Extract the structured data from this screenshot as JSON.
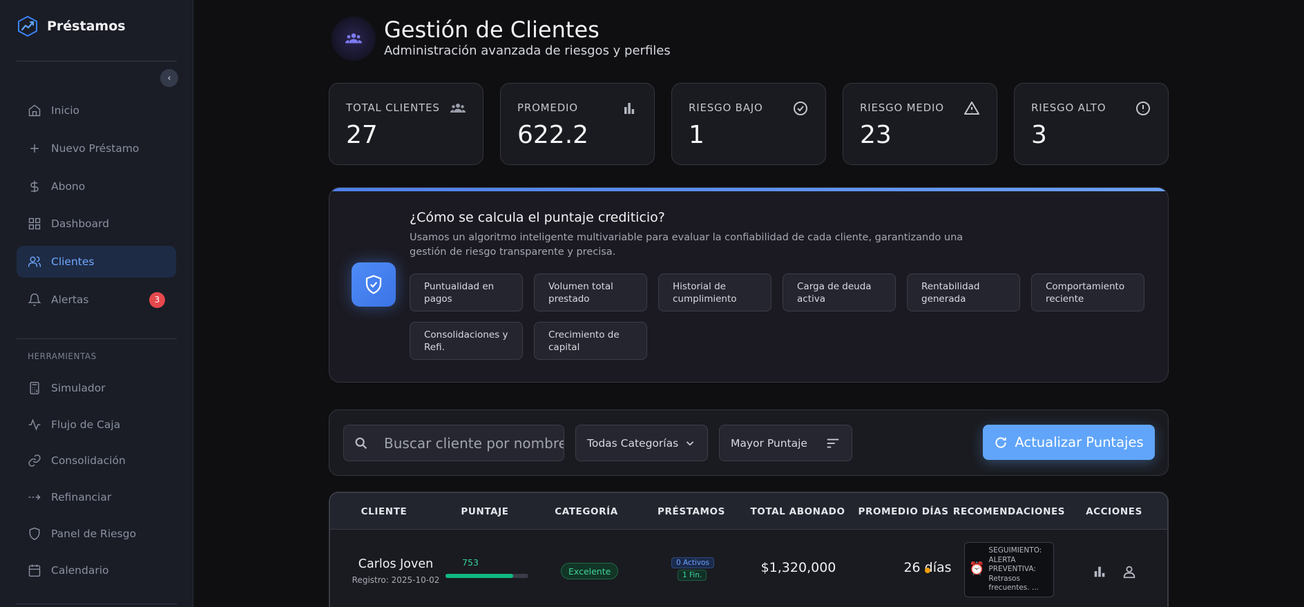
{
  "brand": {
    "name": "Préstamos"
  },
  "sidebar": {
    "items": [
      {
        "label": "Inicio",
        "icon": "home-icon"
      },
      {
        "label": "Nuevo Préstamo",
        "icon": "plus-icon"
      },
      {
        "label": "Abono",
        "icon": "dollar-icon"
      },
      {
        "label": "Dashboard",
        "icon": "grid-icon"
      },
      {
        "label": "Clientes",
        "icon": "users-icon",
        "active": true
      },
      {
        "label": "Alertas",
        "icon": "bell-icon",
        "badge": "3"
      }
    ],
    "tools_title": "HERRAMIENTAS",
    "tools": [
      {
        "label": "Simulador",
        "icon": "calculator-icon"
      },
      {
        "label": "Flujo de Caja",
        "icon": "activity-icon"
      },
      {
        "label": "Consolidación",
        "icon": "link-icon"
      },
      {
        "label": "Refinanciar",
        "icon": "arrows-icon"
      },
      {
        "label": "Panel de Riesgo",
        "icon": "shield-icon"
      },
      {
        "label": "Calendario",
        "icon": "calendar-icon"
      }
    ]
  },
  "header": {
    "title": "Gestión de Clientes",
    "subtitle": "Administración avanzada de riesgos y perfiles"
  },
  "stats": [
    {
      "label": "TOTAL CLIENTES",
      "value": "27",
      "icon": "group-icon"
    },
    {
      "label": "PROMEDIO",
      "value": "622.2",
      "icon": "bar-chart-icon"
    },
    {
      "label": "RIESGO BAJO",
      "value": "1",
      "icon": "check-circle-icon"
    },
    {
      "label": "RIESGO MEDIO",
      "value": "23",
      "icon": "warning-icon"
    },
    {
      "label": "RIESGO ALTO",
      "value": "3",
      "icon": "alert-circle-icon"
    }
  ],
  "info": {
    "title": "¿Cómo se calcula el puntaje crediticio?",
    "description": "Usamos un algoritmo inteligente multivariable para evaluar la confiabilidad de cada cliente, garantizando una gestión de riesgo transparente y precisa.",
    "factors": [
      "Puntualidad en pagos",
      "Volumen total prestado",
      "Historial de cumplimiento",
      "Carga de deuda activa",
      "Rentabilidad generada",
      "Comportamiento reciente",
      "Consolidaciones y Refi.",
      "Crecimiento de capital"
    ]
  },
  "filters": {
    "search_placeholder": "Buscar cliente por nombre o",
    "category": "Todas Categorías",
    "sort": "Mayor Puntaje",
    "refresh_label": "Actualizar Puntajes"
  },
  "table": {
    "columns": [
      "CLIENTE",
      "PUNTAJE",
      "CATEGORÍA",
      "PRÉSTAMOS",
      "TOTAL ABONADO",
      "PROMEDIO DÍAS",
      "RECOMENDACIONES",
      "ACCIONES"
    ],
    "rows": [
      {
        "name": "Carlos Joven",
        "registered": "Registro: 2025-10-02",
        "score": "753",
        "score_fraction": 0.82,
        "category": "Excelente",
        "loans_active": "0 Activos",
        "loans_finished": "1 Fin.",
        "total_paid": "$1,320,000",
        "avg_days": "26 días",
        "recommendation": "SEGUIMIENTO: ALERTA PREVENTIVA: Retrasos frecuentes. ..."
      }
    ]
  },
  "colors": {
    "accent": "#60a5fa",
    "success": "#10b981",
    "danger": "#e5484d",
    "warning": "#f59e0b"
  }
}
